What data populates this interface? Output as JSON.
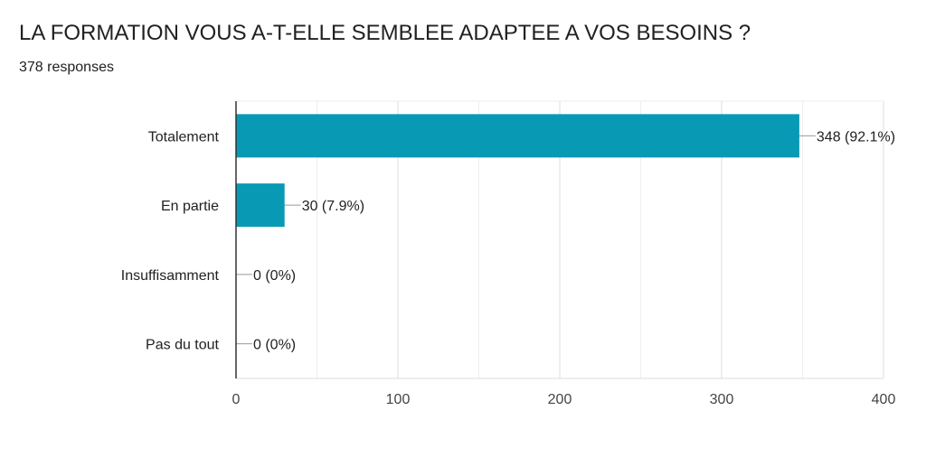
{
  "title": "LA FORMATION VOUS A-T-ELLE SEMBLEE ADAPTEE A VOS BESOINS ?",
  "subtitle": "378 responses",
  "chart_data": {
    "type": "bar",
    "orientation": "horizontal",
    "categories": [
      "Totalement",
      "En partie",
      "Insuffisamment",
      "Pas du tout"
    ],
    "values": [
      348,
      30,
      0,
      0
    ],
    "data_labels": [
      "348 (92.1%)",
      "30 (7.9%)",
      "0 (0%)",
      "0 (0%)"
    ],
    "xlim": [
      0,
      400
    ],
    "xticks": [
      0,
      100,
      200,
      300,
      400
    ],
    "bar_color": "#0899b5",
    "grid": true
  }
}
